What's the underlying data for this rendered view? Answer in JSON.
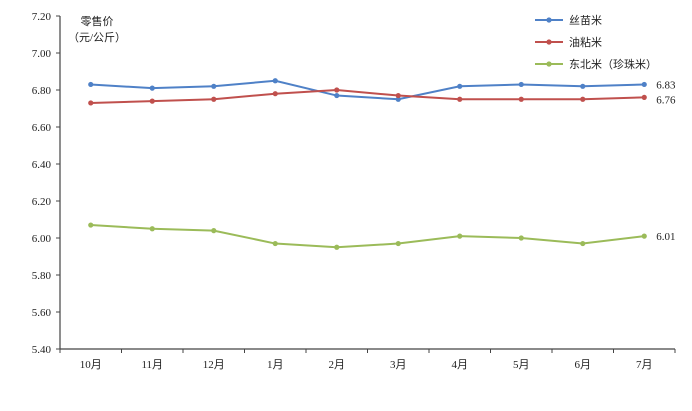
{
  "chart_data": {
    "type": "line",
    "title": "",
    "ylabel_line1": "零售价",
    "ylabel_line2": "（元/公斤）",
    "xlabel": "",
    "categories": [
      "10月",
      "11月",
      "12月",
      "1月",
      "2月",
      "3月",
      "4月",
      "5月",
      "6月",
      "7月"
    ],
    "ylim": [
      5.4,
      7.2
    ],
    "yticks": [
      "5.40",
      "5.60",
      "5.80",
      "6.00",
      "6.20",
      "6.40",
      "6.60",
      "6.80",
      "7.00",
      "7.20"
    ],
    "grid": false,
    "legend_position": "top-right",
    "series": [
      {
        "name": "丝苗米",
        "color": "#4f81c7",
        "values": [
          6.83,
          6.81,
          6.82,
          6.85,
          6.77,
          6.75,
          6.82,
          6.83,
          6.82,
          6.83
        ],
        "end_label": "6.83"
      },
      {
        "name": "油粘米",
        "color": "#c0504d",
        "values": [
          6.73,
          6.74,
          6.75,
          6.78,
          6.8,
          6.77,
          6.75,
          6.75,
          6.75,
          6.76
        ],
        "end_label": "6.76"
      },
      {
        "name": "东北米（珍珠米）",
        "color": "#9bbb59",
        "values": [
          6.07,
          6.05,
          6.04,
          5.97,
          5.95,
          5.97,
          6.01,
          6.0,
          5.97,
          6.01
        ],
        "end_label": "6.01"
      }
    ]
  }
}
